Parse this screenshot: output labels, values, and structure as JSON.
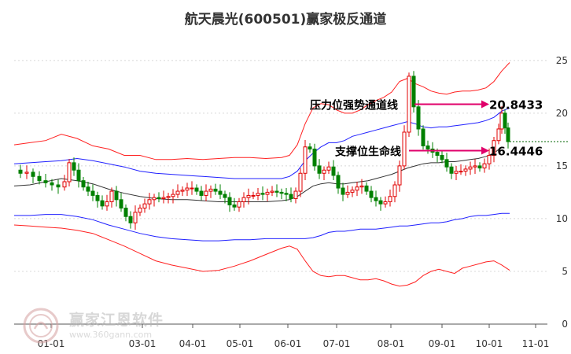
{
  "title": "航天晨光(600501)赢家极反通道",
  "watermark": {
    "name": "赢家江恩软件",
    "url": "www.360gann.com"
  },
  "chart_data": {
    "type": "line",
    "title": "航天晨光(600501)赢家极反通道",
    "yticks": [
      0,
      5,
      10,
      15,
      20,
      25
    ],
    "ylim": [
      0,
      27
    ],
    "xticks": [
      "01-01",
      "03-01",
      "04-01",
      "05-01",
      "06-01",
      "07-01",
      "08-01",
      "09-01",
      "10-01",
      "11-01"
    ],
    "annotations": [
      {
        "label": "压力位强势通道线",
        "value": "20.8433",
        "y": 20.8433
      },
      {
        "label": "支撑位生命线",
        "value": "16.4446",
        "y": 16.4446
      }
    ],
    "last_close": 17.3,
    "bands": {
      "upper_red": [
        [
          0,
          17.0
        ],
        [
          20,
          17.2
        ],
        [
          40,
          17.4
        ],
        [
          60,
          18.0
        ],
        [
          80,
          17.6
        ],
        [
          100,
          16.9
        ],
        [
          120,
          16.6
        ],
        [
          140,
          16.0
        ],
        [
          160,
          16.0
        ],
        [
          180,
          15.6
        ],
        [
          200,
          15.6
        ],
        [
          220,
          15.7
        ],
        [
          240,
          15.6
        ],
        [
          260,
          15.7
        ],
        [
          280,
          15.8
        ],
        [
          300,
          15.8
        ],
        [
          320,
          15.7
        ],
        [
          340,
          15.8
        ],
        [
          350,
          16.0
        ],
        [
          360,
          17.0
        ],
        [
          370,
          19.0
        ],
        [
          380,
          20.5
        ],
        [
          390,
          20.9
        ],
        [
          400,
          20.8
        ],
        [
          410,
          20.3
        ],
        [
          420,
          20.0
        ],
        [
          430,
          20.0
        ],
        [
          440,
          20.3
        ],
        [
          450,
          20.8
        ],
        [
          460,
          21.2
        ],
        [
          470,
          21.5
        ],
        [
          480,
          22.0
        ],
        [
          490,
          23.0
        ],
        [
          500,
          23.3
        ],
        [
          510,
          22.8
        ],
        [
          520,
          22.5
        ],
        [
          530,
          22.1
        ],
        [
          540,
          21.9
        ],
        [
          550,
          21.8
        ],
        [
          560,
          22.0
        ],
        [
          570,
          22.1
        ],
        [
          580,
          22.1
        ],
        [
          590,
          22.2
        ],
        [
          600,
          22.4
        ],
        [
          610,
          23.0
        ],
        [
          620,
          24.0
        ],
        [
          630,
          24.8
        ]
      ],
      "upper_blue": [
        [
          0,
          15.2
        ],
        [
          20,
          15.3
        ],
        [
          40,
          15.4
        ],
        [
          60,
          15.5
        ],
        [
          80,
          15.7
        ],
        [
          100,
          15.5
        ],
        [
          120,
          15.2
        ],
        [
          140,
          14.9
        ],
        [
          160,
          14.5
        ],
        [
          180,
          14.3
        ],
        [
          200,
          14.2
        ],
        [
          220,
          14.1
        ],
        [
          240,
          14.0
        ],
        [
          260,
          13.9
        ],
        [
          280,
          13.8
        ],
        [
          300,
          13.8
        ],
        [
          320,
          13.8
        ],
        [
          340,
          13.8
        ],
        [
          350,
          14.0
        ],
        [
          360,
          14.5
        ],
        [
          370,
          15.5
        ],
        [
          380,
          16.2
        ],
        [
          390,
          16.8
        ],
        [
          400,
          17.2
        ],
        [
          410,
          17.2
        ],
        [
          420,
          17.4
        ],
        [
          430,
          17.8
        ],
        [
          440,
          18.0
        ],
        [
          450,
          18.2
        ],
        [
          460,
          18.4
        ],
        [
          470,
          18.6
        ],
        [
          480,
          18.8
        ],
        [
          490,
          19.0
        ],
        [
          500,
          19.2
        ],
        [
          510,
          19.0
        ],
        [
          520,
          18.7
        ],
        [
          530,
          18.6
        ],
        [
          540,
          18.7
        ],
        [
          550,
          18.7
        ],
        [
          560,
          18.8
        ],
        [
          570,
          18.9
        ],
        [
          580,
          19.0
        ],
        [
          590,
          19.1
        ],
        [
          600,
          19.3
        ],
        [
          610,
          19.6
        ],
        [
          620,
          20.2
        ],
        [
          630,
          20.5
        ]
      ],
      "mid_black": [
        [
          0,
          13.1
        ],
        [
          20,
          13.2
        ],
        [
          40,
          13.5
        ],
        [
          60,
          13.8
        ],
        [
          80,
          13.6
        ],
        [
          100,
          13.3
        ],
        [
          120,
          12.8
        ],
        [
          140,
          12.4
        ],
        [
          160,
          12.1
        ],
        [
          180,
          11.9
        ],
        [
          200,
          11.8
        ],
        [
          220,
          11.8
        ],
        [
          240,
          11.7
        ],
        [
          260,
          11.6
        ],
        [
          280,
          11.6
        ],
        [
          300,
          11.6
        ],
        [
          320,
          11.6
        ],
        [
          340,
          11.7
        ],
        [
          350,
          11.8
        ],
        [
          360,
          12.1
        ],
        [
          370,
          12.6
        ],
        [
          380,
          13.1
        ],
        [
          390,
          13.3
        ],
        [
          400,
          13.4
        ],
        [
          410,
          13.3
        ],
        [
          420,
          13.3
        ],
        [
          430,
          13.4
        ],
        [
          440,
          13.5
        ],
        [
          450,
          13.6
        ],
        [
          460,
          13.8
        ],
        [
          470,
          14.0
        ],
        [
          480,
          14.2
        ],
        [
          490,
          14.5
        ],
        [
          500,
          14.8
        ],
        [
          510,
          15.0
        ],
        [
          520,
          15.2
        ],
        [
          530,
          15.3
        ],
        [
          540,
          15.3
        ],
        [
          550,
          15.4
        ],
        [
          560,
          15.4
        ],
        [
          570,
          15.5
        ],
        [
          580,
          15.6
        ],
        [
          590,
          15.7
        ],
        [
          600,
          15.9
        ],
        [
          610,
          16.2
        ],
        [
          620,
          16.8
        ]
      ],
      "lower_blue": [
        [
          0,
          10.3
        ],
        [
          20,
          10.3
        ],
        [
          40,
          10.4
        ],
        [
          60,
          10.4
        ],
        [
          80,
          10.2
        ],
        [
          100,
          9.9
        ],
        [
          120,
          9.4
        ],
        [
          140,
          9.0
        ],
        [
          160,
          8.6
        ],
        [
          180,
          8.3
        ],
        [
          200,
          8.1
        ],
        [
          220,
          8.0
        ],
        [
          240,
          7.9
        ],
        [
          260,
          7.9
        ],
        [
          280,
          8.0
        ],
        [
          300,
          8.0
        ],
        [
          320,
          8.1
        ],
        [
          340,
          8.1
        ],
        [
          350,
          8.1
        ],
        [
          360,
          8.1
        ],
        [
          370,
          8.1
        ],
        [
          380,
          8.2
        ],
        [
          390,
          8.4
        ],
        [
          400,
          8.7
        ],
        [
          410,
          8.8
        ],
        [
          420,
          8.8
        ],
        [
          430,
          8.9
        ],
        [
          440,
          9.0
        ],
        [
          450,
          9.0
        ],
        [
          460,
          9.0
        ],
        [
          470,
          9.1
        ],
        [
          480,
          9.2
        ],
        [
          490,
          9.3
        ],
        [
          500,
          9.3
        ],
        [
          510,
          9.4
        ],
        [
          520,
          9.5
        ],
        [
          530,
          9.6
        ],
        [
          540,
          9.6
        ],
        [
          550,
          9.7
        ],
        [
          560,
          9.9
        ],
        [
          570,
          10.0
        ],
        [
          580,
          10.2
        ],
        [
          590,
          10.3
        ],
        [
          600,
          10.3
        ],
        [
          610,
          10.4
        ],
        [
          620,
          10.5
        ],
        [
          630,
          10.5
        ]
      ],
      "lower_red": [
        [
          0,
          9.4
        ],
        [
          20,
          9.3
        ],
        [
          40,
          9.2
        ],
        [
          60,
          9.1
        ],
        [
          80,
          8.9
        ],
        [
          100,
          8.6
        ],
        [
          120,
          8.0
        ],
        [
          140,
          7.4
        ],
        [
          160,
          6.7
        ],
        [
          180,
          6.0
        ],
        [
          200,
          5.6
        ],
        [
          220,
          5.3
        ],
        [
          240,
          5.0
        ],
        [
          260,
          5.1
        ],
        [
          280,
          5.5
        ],
        [
          300,
          6.0
        ],
        [
          320,
          6.6
        ],
        [
          340,
          7.2
        ],
        [
          350,
          7.4
        ],
        [
          360,
          7.1
        ],
        [
          370,
          6.0
        ],
        [
          380,
          5.0
        ],
        [
          390,
          4.6
        ],
        [
          400,
          4.5
        ],
        [
          410,
          4.6
        ],
        [
          420,
          4.6
        ],
        [
          430,
          4.4
        ],
        [
          440,
          4.2
        ],
        [
          450,
          4.2
        ],
        [
          460,
          4.3
        ],
        [
          470,
          4.1
        ],
        [
          480,
          3.8
        ],
        [
          490,
          3.6
        ],
        [
          500,
          3.7
        ],
        [
          510,
          4.0
        ],
        [
          520,
          4.6
        ],
        [
          530,
          5.0
        ],
        [
          540,
          5.2
        ],
        [
          550,
          5.0
        ],
        [
          560,
          4.8
        ],
        [
          570,
          5.3
        ],
        [
          580,
          5.5
        ],
        [
          590,
          5.7
        ],
        [
          600,
          5.9
        ],
        [
          610,
          6.0
        ],
        [
          620,
          5.6
        ],
        [
          630,
          5.1
        ]
      ]
    },
    "price": [
      [
        0,
        14.6
      ],
      [
        8,
        14.3
      ],
      [
        16,
        14.4
      ],
      [
        24,
        14.0
      ],
      [
        32,
        13.6
      ],
      [
        40,
        13.4
      ],
      [
        48,
        13.2
      ],
      [
        56,
        13.0
      ],
      [
        64,
        13.5
      ],
      [
        70,
        15.3
      ],
      [
        76,
        14.6
      ],
      [
        82,
        13.6
      ],
      [
        88,
        13.0
      ],
      [
        94,
        12.6
      ],
      [
        100,
        12.2
      ],
      [
        106,
        11.7
      ],
      [
        112,
        11.2
      ],
      [
        118,
        11.6
      ],
      [
        124,
        12.6
      ],
      [
        130,
        11.8
      ],
      [
        136,
        11.0
      ],
      [
        142,
        10.2
      ],
      [
        148,
        9.6
      ],
      [
        154,
        10.6
      ],
      [
        160,
        11.0
      ],
      [
        166,
        11.4
      ],
      [
        172,
        11.8
      ],
      [
        178,
        12.0
      ],
      [
        184,
        11.9
      ],
      [
        190,
        12.0
      ],
      [
        196,
        12.1
      ],
      [
        202,
        12.3
      ],
      [
        208,
        12.6
      ],
      [
        214,
        12.7
      ],
      [
        220,
        12.9
      ],
      [
        226,
        12.9
      ],
      [
        232,
        12.6
      ],
      [
        238,
        12.2
      ],
      [
        244,
        12.6
      ],
      [
        250,
        12.8
      ],
      [
        256,
        12.6
      ],
      [
        262,
        12.3
      ],
      [
        268,
        12.0
      ],
      [
        274,
        11.3
      ],
      [
        280,
        11.1
      ],
      [
        286,
        11.6
      ],
      [
        292,
        12.0
      ],
      [
        298,
        12.2
      ],
      [
        304,
        12.2
      ],
      [
        310,
        12.4
      ],
      [
        316,
        12.3
      ],
      [
        322,
        12.5
      ],
      [
        328,
        12.6
      ],
      [
        334,
        12.5
      ],
      [
        340,
        12.4
      ],
      [
        346,
        12.3
      ],
      [
        352,
        11.9
      ],
      [
        358,
        12.6
      ],
      [
        364,
        14.3
      ],
      [
        370,
        16.8
      ],
      [
        376,
        16.6
      ],
      [
        382,
        15.0
      ],
      [
        388,
        14.3
      ],
      [
        394,
        14.6
      ],
      [
        400,
        14.9
      ],
      [
        406,
        14.1
      ],
      [
        412,
        12.9
      ],
      [
        418,
        12.3
      ],
      [
        424,
        12.5
      ],
      [
        430,
        12.7
      ],
      [
        436,
        13.0
      ],
      [
        442,
        13.1
      ],
      [
        448,
        12.6
      ],
      [
        454,
        12.0
      ],
      [
        460,
        11.7
      ],
      [
        466,
        11.4
      ],
      [
        472,
        11.6
      ],
      [
        478,
        12.1
      ],
      [
        484,
        13.2
      ],
      [
        490,
        15.0
      ],
      [
        496,
        18.2
      ],
      [
        502,
        23.5
      ],
      [
        508,
        20.6
      ],
      [
        514,
        18.5
      ],
      [
        520,
        16.9
      ],
      [
        526,
        16.6
      ],
      [
        532,
        16.3
      ],
      [
        538,
        16.0
      ],
      [
        544,
        15.6
      ],
      [
        550,
        14.9
      ],
      [
        556,
        14.3
      ],
      [
        562,
        14.5
      ],
      [
        568,
        14.5
      ],
      [
        574,
        14.7
      ],
      [
        580,
        14.9
      ],
      [
        586,
        15.0
      ],
      [
        592,
        14.8
      ],
      [
        598,
        15.2
      ],
      [
        604,
        16.0
      ],
      [
        610,
        17.4
      ],
      [
        616,
        18.5
      ],
      [
        620,
        20.0
      ],
      [
        624,
        18.6
      ],
      [
        628,
        17.3
      ]
    ]
  }
}
